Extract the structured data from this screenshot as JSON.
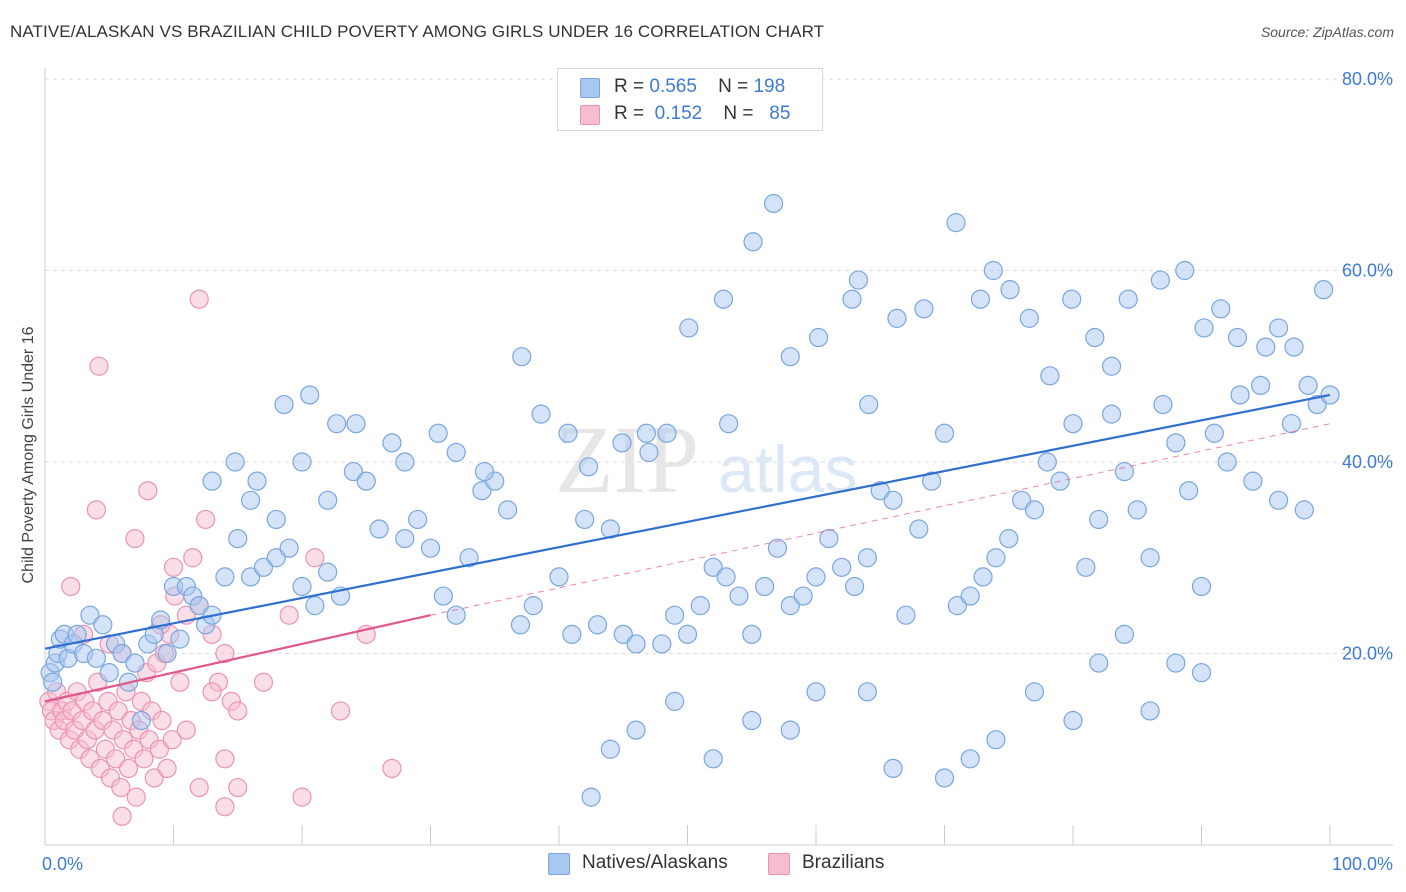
{
  "title": "NATIVE/ALASKAN VS BRAZILIAN CHILD POVERTY AMONG GIRLS UNDER 16 CORRELATION CHART",
  "source": "Source: ZipAtlas.com",
  "watermark": {
    "zip": "ZIP",
    "atlas": "atlas"
  },
  "legend": {
    "rows": [
      {
        "r_label": "R =",
        "r_value": "0.565",
        "n_label": "N =",
        "n_value": "198"
      },
      {
        "r_label": "R =",
        "r_value": "0.152",
        "n_label": "N =",
        "n_value": "85"
      }
    ]
  },
  "bottom_legend": [
    "Natives/Alaskans",
    "Brazilians"
  ],
  "colors": {
    "native_fill": "#a9c8f0",
    "native_stroke": "#7aa6e0",
    "native_line": "#2f6fd0",
    "brazil_fill": "#f5bdd0",
    "brazil_stroke": "#ec93b2",
    "brazil_line": "#e0578a",
    "tick_text": "#3d7bd6",
    "grid": "#dddddd"
  },
  "chart_data": {
    "type": "scatter",
    "title": "NATIVE/ALASKAN VS BRAZILIAN CHILD POVERTY AMONG GIRLS UNDER 16 CORRELATION CHART",
    "xlabel": "",
    "ylabel": "Child Poverty Among Girls Under 16",
    "xlim": [
      0,
      100
    ],
    "ylim": [
      0,
      80
    ],
    "x_ticks": [
      "0.0%",
      "100.0%"
    ],
    "y_ticks": [
      "20.0%",
      "40.0%",
      "60.0%",
      "80.0%"
    ],
    "y_tick_values": [
      20,
      40,
      60,
      80
    ],
    "grid": true,
    "legend_position": "top-center",
    "series": [
      {
        "name": "Natives/Alaskans",
        "r": 0.565,
        "n": 198,
        "trend": {
          "x": [
            0,
            100
          ],
          "y": [
            20.5,
            47
          ]
        },
        "points": [
          [
            0.4,
            18
          ],
          [
            0.6,
            17
          ],
          [
            0.8,
            19
          ],
          [
            1,
            20
          ],
          [
            1.2,
            21.5
          ],
          [
            1.5,
            22
          ],
          [
            1.8,
            19.5
          ],
          [
            2.2,
            21
          ],
          [
            2.5,
            22
          ],
          [
            3,
            20
          ],
          [
            3.5,
            24
          ],
          [
            4,
            19.5
          ],
          [
            4.5,
            23
          ],
          [
            5,
            18
          ],
          [
            5.5,
            21
          ],
          [
            6,
            20
          ],
          [
            6.5,
            17
          ],
          [
            7,
            19
          ],
          [
            7.5,
            13
          ],
          [
            8,
            21
          ],
          [
            8.5,
            22
          ],
          [
            9,
            23.5
          ],
          [
            9.5,
            20
          ],
          [
            10,
            27
          ],
          [
            10.5,
            21.5
          ],
          [
            11,
            27
          ],
          [
            11.5,
            26
          ],
          [
            12,
            25
          ],
          [
            12.5,
            23
          ],
          [
            13,
            24
          ],
          [
            14,
            28
          ],
          [
            15,
            32
          ],
          [
            16,
            28
          ],
          [
            17,
            29
          ],
          [
            18,
            30
          ],
          [
            19,
            31
          ],
          [
            20,
            27
          ],
          [
            21,
            25
          ],
          [
            22,
            28.5
          ],
          [
            23,
            26
          ],
          [
            13,
            38
          ],
          [
            16,
            36
          ],
          [
            18,
            34
          ],
          [
            20,
            40
          ],
          [
            22,
            36
          ],
          [
            24,
            39
          ],
          [
            25,
            38
          ],
          [
            26,
            33
          ],
          [
            27,
            42
          ],
          [
            28,
            32
          ],
          [
            29,
            34
          ],
          [
            30,
            31
          ],
          [
            31,
            26
          ],
          [
            32,
            24
          ],
          [
            33,
            30
          ],
          [
            34,
            37
          ],
          [
            35,
            38
          ],
          [
            36,
            35
          ],
          [
            37,
            23
          ],
          [
            38,
            25
          ],
          [
            40,
            28
          ],
          [
            41,
            22
          ],
          [
            42,
            34
          ],
          [
            43,
            23
          ],
          [
            44,
            33
          ],
          [
            45,
            22
          ],
          [
            46,
            21
          ],
          [
            47,
            41
          ],
          [
            48,
            21
          ],
          [
            49,
            24
          ],
          [
            50,
            22
          ],
          [
            51,
            25
          ],
          [
            52,
            29
          ],
          [
            53,
            28
          ],
          [
            54,
            26
          ],
          [
            55,
            22
          ],
          [
            56,
            27
          ],
          [
            57,
            31
          ],
          [
            58,
            25
          ],
          [
            59,
            26
          ],
          [
            60,
            28
          ],
          [
            61,
            32
          ],
          [
            62,
            29
          ],
          [
            63,
            27
          ],
          [
            64,
            30
          ],
          [
            65,
            37
          ],
          [
            66,
            36
          ],
          [
            67,
            24
          ],
          [
            68,
            33
          ],
          [
            69,
            38
          ],
          [
            70,
            43
          ],
          [
            71,
            25
          ],
          [
            72,
            26
          ],
          [
            73,
            28
          ],
          [
            74,
            30
          ],
          [
            75,
            32
          ],
          [
            76,
            36
          ],
          [
            77,
            35
          ],
          [
            78,
            40
          ],
          [
            79,
            38
          ],
          [
            80,
            44
          ],
          [
            81,
            29
          ],
          [
            82,
            34
          ],
          [
            83,
            45
          ],
          [
            84,
            39
          ],
          [
            85,
            35
          ],
          [
            86,
            30
          ],
          [
            87,
            46
          ],
          [
            88,
            42
          ],
          [
            89,
            37
          ],
          [
            90,
            27
          ],
          [
            91,
            43
          ],
          [
            92,
            40
          ],
          [
            93,
            47
          ],
          [
            94,
            38
          ],
          [
            95,
            52
          ],
          [
            96,
            36
          ],
          [
            97,
            44
          ],
          [
            98,
            35
          ],
          [
            99,
            46
          ],
          [
            14.8,
            40
          ],
          [
            16.5,
            38
          ],
          [
            18.6,
            46
          ],
          [
            20.6,
            47
          ],
          [
            22.7,
            44
          ],
          [
            24.2,
            44
          ],
          [
            28,
            40
          ],
          [
            30.6,
            43
          ],
          [
            32,
            41
          ],
          [
            34.2,
            39
          ],
          [
            37.1,
            51
          ],
          [
            38.6,
            45
          ],
          [
            40.7,
            43
          ],
          [
            42.3,
            39.5
          ],
          [
            44.9,
            42
          ],
          [
            46.8,
            43
          ],
          [
            48.4,
            43
          ],
          [
            50.1,
            54
          ],
          [
            52.8,
            57
          ],
          [
            53.2,
            44
          ],
          [
            55.1,
            63
          ],
          [
            56.7,
            67
          ],
          [
            58,
            51
          ],
          [
            60.2,
            53
          ],
          [
            62.8,
            57
          ],
          [
            63.3,
            59
          ],
          [
            64.1,
            46
          ],
          [
            66.3,
            55
          ],
          [
            68.4,
            56
          ],
          [
            70.9,
            65
          ],
          [
            72.8,
            57
          ],
          [
            73.8,
            60
          ],
          [
            75.1,
            58
          ],
          [
            76.6,
            55
          ],
          [
            78.2,
            49
          ],
          [
            79.9,
            57
          ],
          [
            81.7,
            53
          ],
          [
            83,
            50
          ],
          [
            84.3,
            57
          ],
          [
            86.8,
            59
          ],
          [
            88.7,
            60
          ],
          [
            90.2,
            54
          ],
          [
            91.5,
            56
          ],
          [
            92.8,
            53
          ],
          [
            94.6,
            48
          ],
          [
            96,
            54
          ],
          [
            97.2,
            52
          ],
          [
            98.3,
            48
          ],
          [
            99.5,
            58
          ],
          [
            100,
            47
          ],
          [
            42.5,
            5
          ],
          [
            49,
            15
          ],
          [
            55,
            13
          ],
          [
            60,
            16
          ],
          [
            64,
            16
          ],
          [
            66,
            8
          ],
          [
            70,
            7
          ],
          [
            72,
            9
          ],
          [
            74,
            11
          ],
          [
            77,
            16
          ],
          [
            80,
            13
          ],
          [
            82,
            19
          ],
          [
            84,
            22
          ],
          [
            86,
            14
          ],
          [
            88,
            19
          ],
          [
            90,
            18
          ],
          [
            44,
            10
          ],
          [
            46,
            12
          ],
          [
            52,
            9
          ],
          [
            58,
            12
          ]
        ]
      },
      {
        "name": "Brazilians",
        "r": 0.152,
        "n": 85,
        "trend": {
          "x": [
            0,
            30
          ],
          "y": [
            15,
            24
          ]
        },
        "trend_dashed": {
          "x": [
            30,
            100
          ],
          "y": [
            24,
            44
          ]
        },
        "points": [
          [
            0.3,
            15
          ],
          [
            0.5,
            14
          ],
          [
            0.7,
            13
          ],
          [
            0.9,
            16
          ],
          [
            1.1,
            12
          ],
          [
            1.3,
            14
          ],
          [
            1.5,
            13
          ],
          [
            1.7,
            15
          ],
          [
            1.9,
            11
          ],
          [
            2.1,
            14
          ],
          [
            2.3,
            12
          ],
          [
            2.5,
            16
          ],
          [
            2.7,
            10
          ],
          [
            2.9,
            13
          ],
          [
            3.1,
            15
          ],
          [
            3.3,
            11
          ],
          [
            3.5,
            9
          ],
          [
            3.7,
            14
          ],
          [
            3.9,
            12
          ],
          [
            4.1,
            17
          ],
          [
            4.3,
            8
          ],
          [
            4.5,
            13
          ],
          [
            4.7,
            10
          ],
          [
            4.9,
            15
          ],
          [
            5.1,
            7
          ],
          [
            5.3,
            12
          ],
          [
            5.5,
            9
          ],
          [
            5.7,
            14
          ],
          [
            5.9,
            6
          ],
          [
            6.1,
            11
          ],
          [
            6.3,
            16
          ],
          [
            6.5,
            8
          ],
          [
            6.7,
            13
          ],
          [
            6.9,
            10
          ],
          [
            7.1,
            5
          ],
          [
            7.3,
            12
          ],
          [
            7.5,
            15
          ],
          [
            7.7,
            9
          ],
          [
            7.9,
            18
          ],
          [
            8.1,
            11
          ],
          [
            8.3,
            14
          ],
          [
            8.5,
            7
          ],
          [
            8.7,
            19
          ],
          [
            8.9,
            10
          ],
          [
            9.1,
            13
          ],
          [
            9.3,
            20
          ],
          [
            9.5,
            8
          ],
          [
            9.7,
            22
          ],
          [
            9.9,
            11
          ],
          [
            10.1,
            26
          ],
          [
            10.5,
            17
          ],
          [
            11,
            12
          ],
          [
            11.5,
            30
          ],
          [
            12,
            6
          ],
          [
            12.5,
            34
          ],
          [
            13,
            22
          ],
          [
            13.5,
            17
          ],
          [
            14,
            9
          ],
          [
            14.5,
            15
          ],
          [
            15,
            6
          ],
          [
            2,
            27
          ],
          [
            3,
            22
          ],
          [
            4,
            35
          ],
          [
            5,
            21
          ],
          [
            6,
            20
          ],
          [
            7,
            32
          ],
          [
            8,
            37
          ],
          [
            9,
            23
          ],
          [
            10,
            29
          ],
          [
            11,
            24
          ],
          [
            12,
            25
          ],
          [
            13,
            16
          ],
          [
            14,
            20
          ],
          [
            15,
            14
          ],
          [
            17,
            17
          ],
          [
            19,
            24
          ],
          [
            21,
            30
          ],
          [
            23,
            14
          ],
          [
            25,
            22
          ],
          [
            27,
            8
          ],
          [
            4.2,
            50
          ],
          [
            12,
            57
          ],
          [
            6,
            3
          ],
          [
            14,
            4
          ],
          [
            20,
            5
          ]
        ]
      }
    ]
  }
}
